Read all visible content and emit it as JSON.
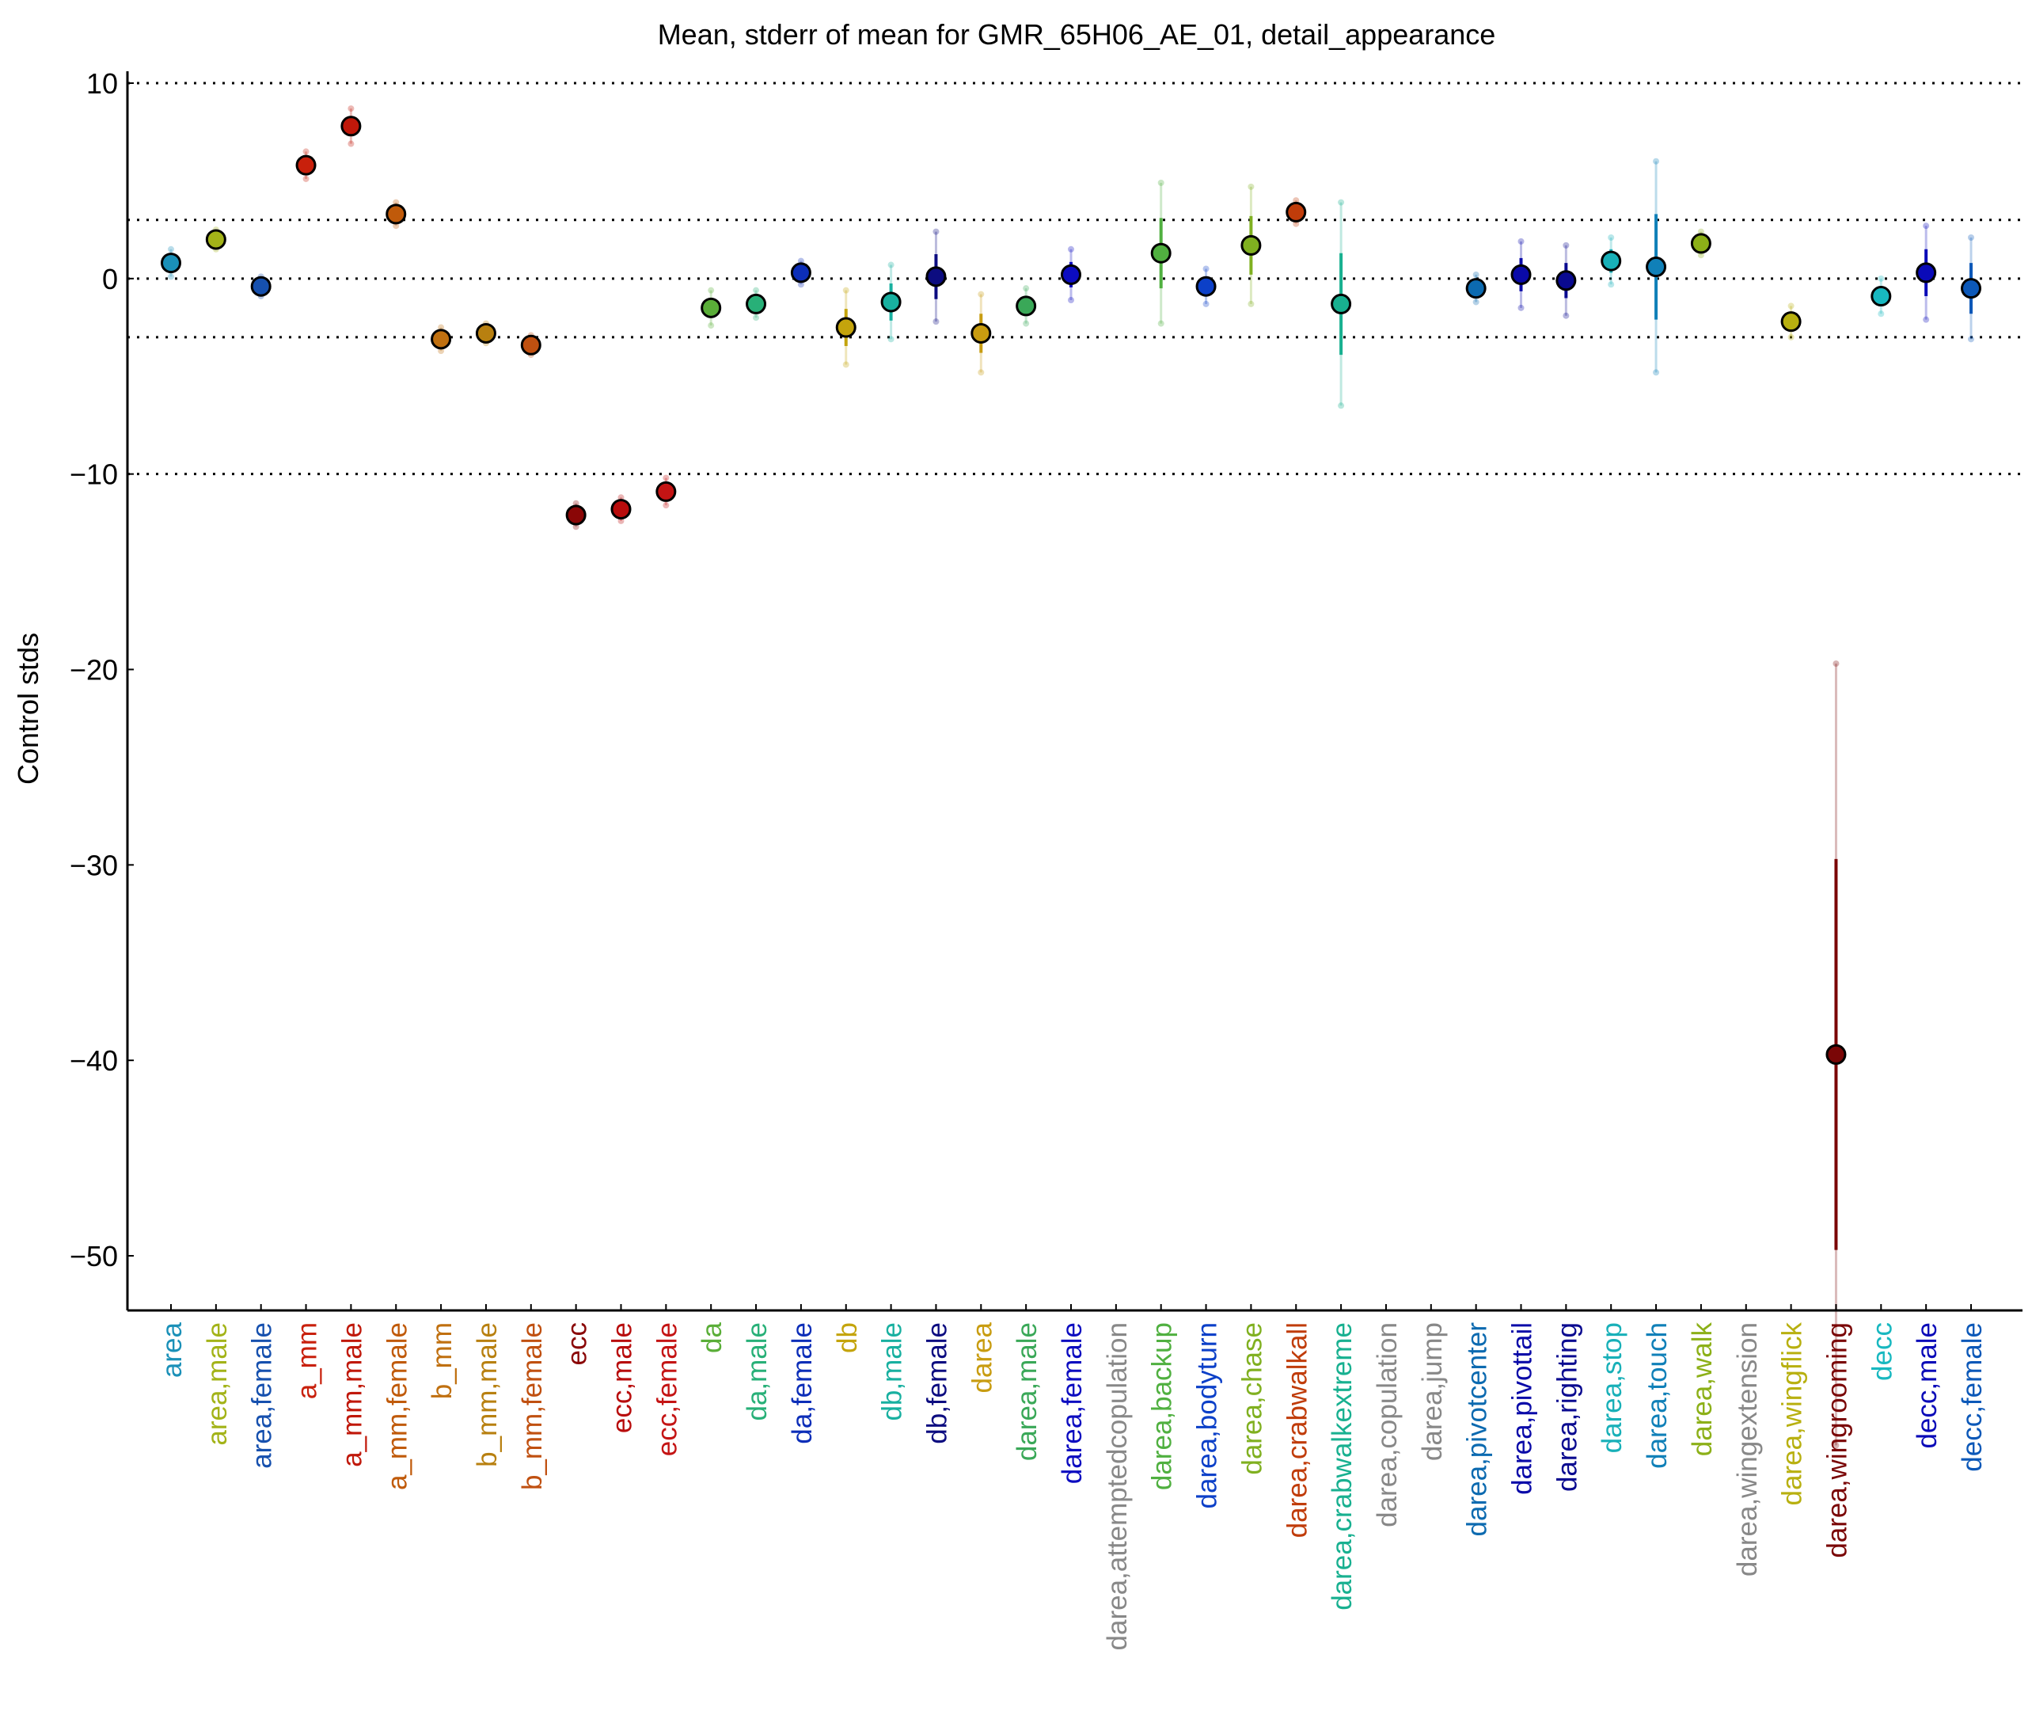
{
  "chart_data": {
    "type": "scatter",
    "title": "Mean, stderr of mean for GMR_65H06_AE_01, detail_appearance",
    "xlabel": "",
    "ylabel": "Control stds",
    "ylim": [
      -52.5,
      10.6
    ],
    "yticks": [
      10,
      0,
      -10,
      -20,
      -30,
      -40,
      -50
    ],
    "ytick_labels": [
      "10",
      "0",
      "−10",
      "−20",
      "−30",
      "−40",
      "−50"
    ],
    "reference_lines": [
      10,
      3,
      0,
      -3,
      -10
    ],
    "grid": false,
    "legend": "none",
    "categories": [
      "area",
      "area,male",
      "area,female",
      "a_mm",
      "a_mm,male",
      "a_mm,female",
      "b_mm",
      "b_mm,male",
      "b_mm,female",
      "ecc",
      "ecc,male",
      "ecc,female",
      "da",
      "da,male",
      "da,female",
      "db",
      "db,male",
      "db,female",
      "darea",
      "darea,male",
      "darea,female",
      "darea,attemptedcopulation",
      "darea,backup",
      "darea,bodyturn",
      "darea,chase",
      "darea,crabwalkall",
      "darea,crabwalkextreme",
      "darea,copulation",
      "darea,jump",
      "darea,pivotcenter",
      "darea,pivottail",
      "darea,righting",
      "darea,stop",
      "darea,touch",
      "darea,walk",
      "darea,wingextension",
      "darea,wingflick",
      "darea,wingrooming",
      "decc",
      "decc,male",
      "decc,female"
    ],
    "colors": [
      "#1a90b8",
      "#a3b318",
      "#1650ae",
      "#c8200c",
      "#c0180a",
      "#c05a0a",
      "#c07010",
      "#b88010",
      "#c05010",
      "#8a0606",
      "#b80c0c",
      "#c41414",
      "#5aae38",
      "#28b078",
      "#0c2eb8",
      "#c4a40c",
      "#18b0a0",
      "#0c0c80",
      "#c89c10",
      "#3aa858",
      "#0c0cc0",
      "#888888",
      "#50b040",
      "#0c40c8",
      "#80b020",
      "#c03c0a",
      "#18b090",
      "#888888",
      "#888888",
      "#0c6ab0",
      "#0a0aa8",
      "#0a0a90",
      "#18b0b8",
      "#1080b8",
      "#8cb018",
      "#888888",
      "#b8b010",
      "#7a0606",
      "#18b8c0",
      "#0a0ab8",
      "#0c58b8"
    ],
    "means": [
      0.8,
      2.0,
      -0.4,
      5.8,
      7.8,
      3.3,
      -3.1,
      -2.8,
      -3.4,
      -12.1,
      -11.8,
      -10.9,
      -1.5,
      -1.3,
      0.3,
      -2.5,
      -1.2,
      0.1,
      -2.8,
      -1.4,
      0.2,
      null,
      1.3,
      -0.4,
      1.7,
      3.4,
      -1.3,
      null,
      null,
      -0.5,
      0.2,
      -0.1,
      0.9,
      0.6,
      1.8,
      null,
      -2.2,
      -39.7,
      -0.9,
      0.3,
      -0.5
    ],
    "stderr": [
      0.35,
      0.25,
      0.25,
      0.35,
      0.45,
      0.3,
      0.3,
      0.25,
      0.25,
      0.3,
      0.3,
      0.35,
      0.45,
      0.35,
      0.3,
      0.95,
      0.95,
      1.15,
      1.0,
      0.45,
      0.65,
      null,
      1.8,
      0.45,
      1.5,
      0.3,
      2.6,
      null,
      null,
      0.35,
      0.85,
      0.9,
      0.6,
      2.7,
      0.3,
      null,
      0.4,
      10.0,
      0.45,
      1.2,
      1.3
    ]
  }
}
